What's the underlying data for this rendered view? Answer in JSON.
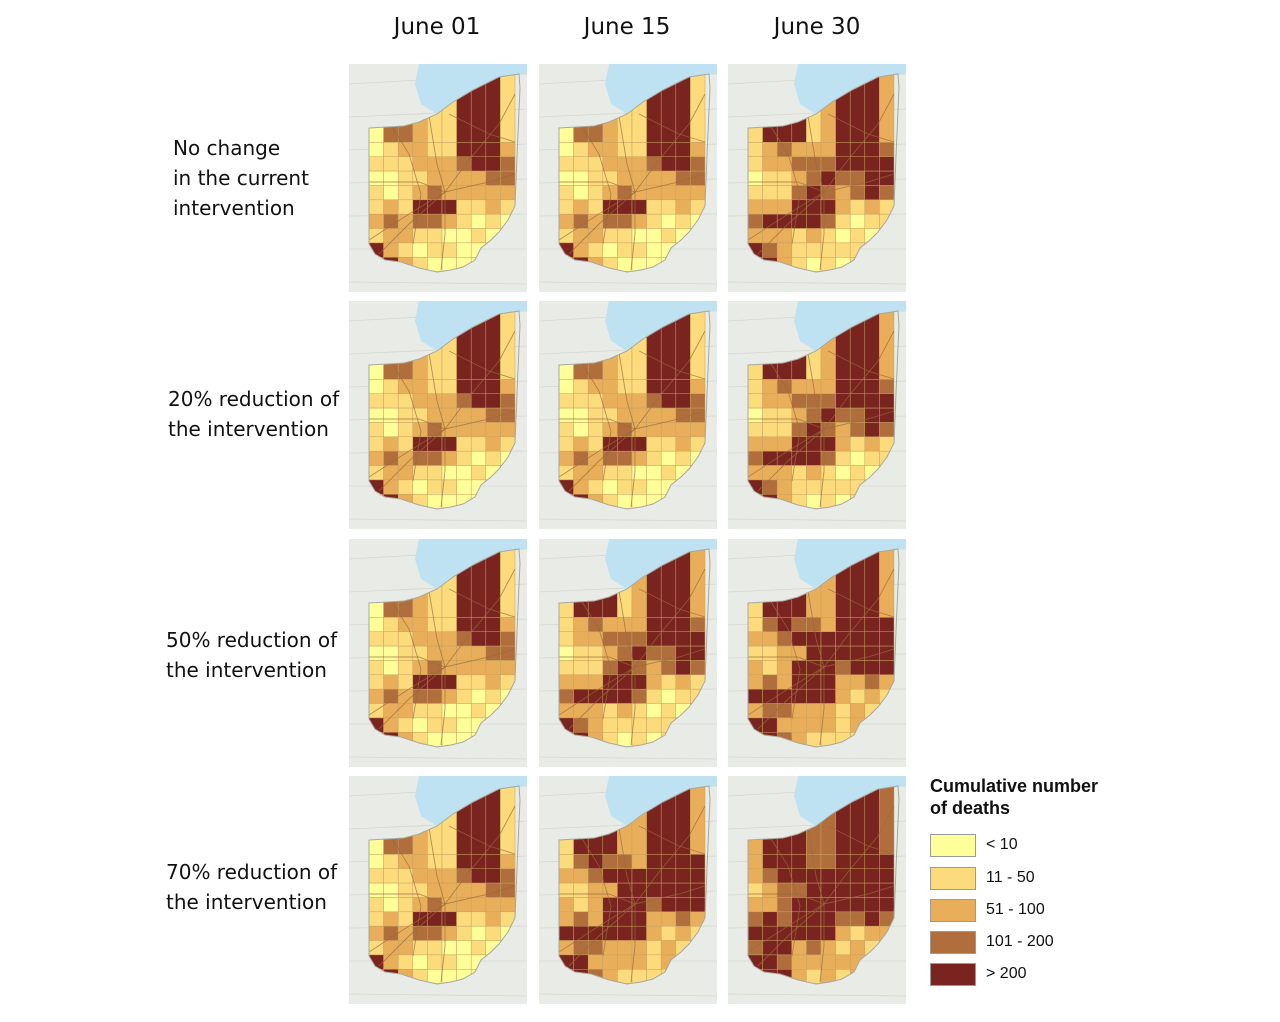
{
  "columns": [
    "June 01",
    "June 15",
    "June 30"
  ],
  "rows": [
    {
      "label_lines": [
        "No change",
        "in the current",
        "intervention"
      ],
      "levels": [
        1,
        1,
        2
      ]
    },
    {
      "label_lines": [
        "20% reduction of",
        "the intervention"
      ],
      "levels": [
        1,
        1,
        2
      ]
    },
    {
      "label_lines": [
        "50% reduction of",
        "the intervention"
      ],
      "levels": [
        1,
        2,
        3
      ]
    },
    {
      "label_lines": [
        "70% reduction of",
        "the intervention"
      ],
      "levels": [
        1,
        3,
        4
      ]
    }
  ],
  "legend": {
    "title_lines": [
      "Cumulative number",
      "of deaths"
    ],
    "classes": [
      {
        "label": "< 10",
        "color": "#ffff99"
      },
      {
        "label": "11 - 50",
        "color": "#fbdb7c"
      },
      {
        "label": "51 - 100",
        "color": "#e8ae5a"
      },
      {
        "label": "101 - 200",
        "color": "#b06e3c"
      },
      {
        "label": "> 200",
        "color": "#7a2420"
      }
    ]
  },
  "map": {
    "lake_color": "#bfe2f2",
    "basemap_color": "#e9ece6",
    "boundary_color": "#c8a15e",
    "road_color": "#9a6b3a"
  }
}
